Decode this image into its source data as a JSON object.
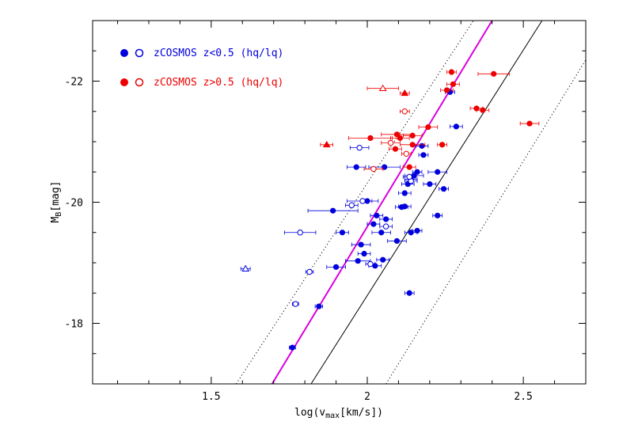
{
  "chart_data": {
    "type": "scatter",
    "title": "",
    "xlabel": "log(v",
    "xlabel_sub": "max",
    "xlabel_unit": "[km/s])",
    "ylabel": "M",
    "ylabel_sub": "B",
    "ylabel_unit": "[mag]",
    "xlim": [
      1.12,
      2.7
    ],
    "ylim": [
      -17,
      -23
    ],
    "x_ticks": [
      1.5,
      2,
      2.5
    ],
    "x_tick_labels": [
      "1.5",
      "2",
      "2.5"
    ],
    "y_ticks": [
      -18,
      -20,
      -22
    ],
    "y_tick_labels": [
      "-18",
      "-20",
      "-22"
    ],
    "grid": false,
    "legend": [
      {
        "label": "zCOSMOS z<0.5 (hq/lq)",
        "color": "#0000dd"
      },
      {
        "label": "zCOSMOS z>0.5 (hq/lq)",
        "color": "#ee0000"
      }
    ],
    "lines": [
      {
        "name": "magenta-fit",
        "color": "#dd00dd",
        "points": [
          [
            1.695,
            -17.0
          ],
          [
            2.4,
            -23.0
          ]
        ]
      },
      {
        "name": "black-relation",
        "color": "#000000",
        "points": [
          [
            1.82,
            -17.0
          ],
          [
            2.56,
            -23.0
          ]
        ]
      },
      {
        "name": "dotted-upper",
        "color": "#000000",
        "dotted": true,
        "points": [
          [
            1.58,
            -17.0
          ],
          [
            2.34,
            -23.0
          ]
        ]
      },
      {
        "name": "dotted-lower",
        "color": "#000000",
        "dotted": true,
        "points": [
          [
            2.06,
            -17.0
          ],
          [
            2.7,
            -22.35
          ]
        ]
      }
    ],
    "series": [
      {
        "name": "z<0.5 hq",
        "color": "#0000dd",
        "marker": "filled-circle",
        "points": [
          {
            "x": 1.76,
            "y": -17.6,
            "xerr": 0.01
          },
          {
            "x": 1.845,
            "y": -18.28,
            "xerr": 0.012
          },
          {
            "x": 1.9,
            "y": -18.93,
            "xerr": 0.03
          },
          {
            "x": 1.97,
            "y": -19.03,
            "xerr": 0.04
          },
          {
            "x": 2.025,
            "y": -18.95,
            "xerr": 0.02
          },
          {
            "x": 2.05,
            "y": -19.05,
            "xerr": 0.02
          },
          {
            "x": 1.99,
            "y": -19.15,
            "xerr": 0.02
          },
          {
            "x": 1.98,
            "y": -19.3,
            "xerr": 0.03
          },
          {
            "x": 2.095,
            "y": -19.36,
            "xerr": 0.03
          },
          {
            "x": 1.92,
            "y": -19.5,
            "xerr": 0.02
          },
          {
            "x": 2.045,
            "y": -19.5,
            "xerr": 0.03
          },
          {
            "x": 2.14,
            "y": -19.5,
            "xerr": 0.02
          },
          {
            "x": 2.16,
            "y": -19.53,
            "xerr": 0.015
          },
          {
            "x": 2.02,
            "y": -19.64,
            "xerr": 0.02
          },
          {
            "x": 2.06,
            "y": -19.72,
            "xerr": 0.02
          },
          {
            "x": 2.03,
            "y": -19.78,
            "xerr": 0.02
          },
          {
            "x": 2.225,
            "y": -19.78,
            "xerr": 0.015
          },
          {
            "x": 1.89,
            "y": -19.86,
            "xerr": 0.08
          },
          {
            "x": 2.11,
            "y": -19.92,
            "xerr": 0.02
          },
          {
            "x": 2.12,
            "y": -19.93,
            "xerr": 0.02
          },
          {
            "x": 2.0,
            "y": -20.02,
            "xerr": 0.015
          },
          {
            "x": 2.12,
            "y": -20.15,
            "xerr": 0.02
          },
          {
            "x": 2.245,
            "y": -20.22,
            "xerr": 0.015
          },
          {
            "x": 2.2,
            "y": -20.3,
            "xerr": 0.02
          },
          {
            "x": 2.13,
            "y": -20.3,
            "xerr": 0.02
          },
          {
            "x": 2.14,
            "y": -20.38,
            "xerr": 0.02
          },
          {
            "x": 2.15,
            "y": -20.44,
            "xerr": 0.03
          },
          {
            "x": 2.16,
            "y": -20.5,
            "xerr": 0.015
          },
          {
            "x": 2.225,
            "y": -20.5,
            "xerr": 0.03
          },
          {
            "x": 2.055,
            "y": -20.58,
            "xerr": 0.05
          },
          {
            "x": 1.965,
            "y": -20.58,
            "xerr": 0.03
          },
          {
            "x": 2.18,
            "y": -20.78,
            "xerr": 0.015
          },
          {
            "x": 2.175,
            "y": -20.93,
            "xerr": 0.02
          },
          {
            "x": 2.285,
            "y": -21.25,
            "xerr": 0.02
          },
          {
            "x": 2.265,
            "y": -21.82,
            "xerr": 0.015
          },
          {
            "x": 2.135,
            "y": -18.5,
            "xerr": 0.015
          }
        ]
      },
      {
        "name": "z<0.5 lq",
        "color": "#0000dd",
        "marker": "open-circle",
        "points": [
          {
            "x": 1.77,
            "y": -18.32,
            "xerr": 0.01
          },
          {
            "x": 1.815,
            "y": -18.85,
            "xerr": 0.012
          },
          {
            "x": 1.785,
            "y": -19.5,
            "xerr": 0.05
          },
          {
            "x": 1.95,
            "y": -19.95,
            "xerr": 0.02
          },
          {
            "x": 2.06,
            "y": -19.6,
            "xerr": 0.02
          },
          {
            "x": 2.01,
            "y": -18.98,
            "xerr": 0.015
          },
          {
            "x": 1.985,
            "y": -20.02,
            "xerr": 0.05
          },
          {
            "x": 1.975,
            "y": -20.9,
            "xerr": 0.03
          },
          {
            "x": 2.14,
            "y": -20.35,
            "xerr": 0.02
          },
          {
            "x": 2.135,
            "y": -20.42,
            "xerr": 0.02
          }
        ]
      },
      {
        "name": "z<0.5 triangle",
        "color": "#0000dd",
        "marker": "open-triangle",
        "points": [
          {
            "x": 1.61,
            "y": -18.9,
            "xerr": 0.015
          }
        ]
      },
      {
        "name": "z>0.5 hq",
        "color": "#ee0000",
        "marker": "filled-circle",
        "points": [
          {
            "x": 2.405,
            "y": -22.12,
            "xerr": 0.05
          },
          {
            "x": 2.27,
            "y": -22.15,
            "xerr": 0.015
          },
          {
            "x": 2.275,
            "y": -21.95,
            "xerr": 0.02
          },
          {
            "x": 2.255,
            "y": -21.85,
            "xerr": 0.02
          },
          {
            "x": 2.35,
            "y": -21.55,
            "xerr": 0.02
          },
          {
            "x": 2.37,
            "y": -21.52,
            "xerr": 0.02
          },
          {
            "x": 2.52,
            "y": -21.3,
            "xerr": 0.03
          },
          {
            "x": 2.195,
            "y": -21.24,
            "xerr": 0.03
          },
          {
            "x": 2.095,
            "y": -21.12,
            "xerr": 0.05
          },
          {
            "x": 2.145,
            "y": -21.1,
            "xerr": 0.03
          },
          {
            "x": 2.01,
            "y": -21.06,
            "xerr": 0.07
          },
          {
            "x": 2.105,
            "y": -21.06,
            "xerr": 0.03
          },
          {
            "x": 2.145,
            "y": -20.95,
            "xerr": 0.04
          },
          {
            "x": 2.24,
            "y": -20.95,
            "xerr": 0.015
          },
          {
            "x": 2.09,
            "y": -20.88,
            "xerr": 0.02
          },
          {
            "x": 2.135,
            "y": -20.58,
            "xerr": 0.02
          }
        ]
      },
      {
        "name": "z>0.5 lq",
        "color": "#ee0000",
        "marker": "open-circle",
        "points": [
          {
            "x": 2.12,
            "y": -21.5,
            "xerr": 0.015
          },
          {
            "x": 2.075,
            "y": -20.98,
            "xerr": 0.03
          },
          {
            "x": 2.125,
            "y": -20.8,
            "xerr": 0.015
          },
          {
            "x": 2.02,
            "y": -20.55,
            "xerr": 0.03
          }
        ]
      },
      {
        "name": "z>0.5 triangle",
        "color": "#ee0000",
        "marker": "open-triangle",
        "points": [
          {
            "x": 2.05,
            "y": -21.88,
            "xerr": 0.05
          }
        ]
      },
      {
        "name": "z>0.5 filled triangle",
        "color": "#ee0000",
        "marker": "filled-triangle",
        "points": [
          {
            "x": 1.87,
            "y": -20.95,
            "xerr": 0.02
          },
          {
            "x": 2.12,
            "y": -21.8,
            "xerr": 0.015
          }
        ]
      }
    ]
  }
}
